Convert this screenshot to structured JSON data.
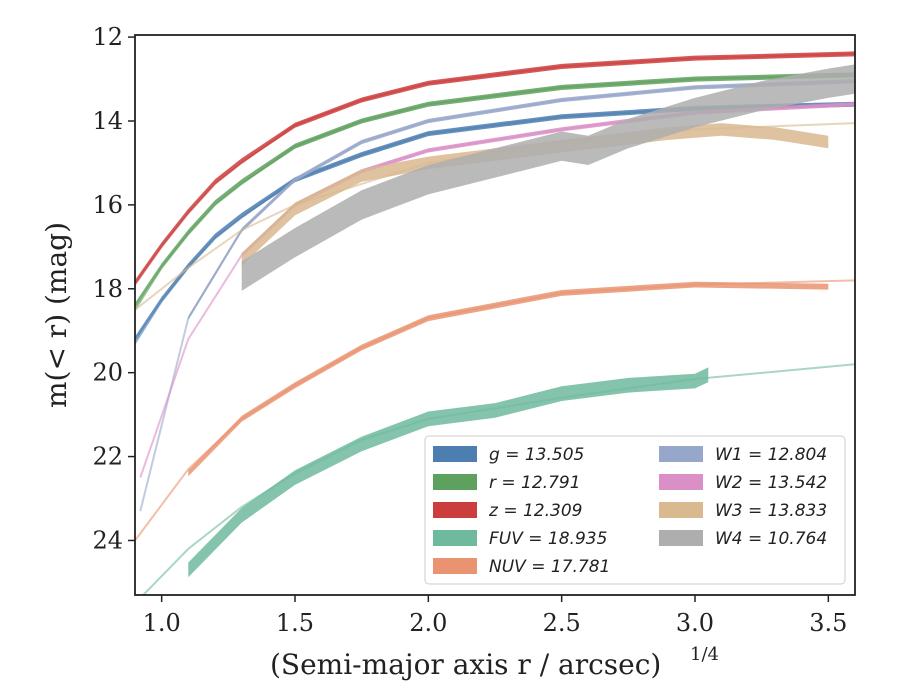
{
  "chart_data": {
    "type": "line",
    "xlabel": "(Semi-major axis r / arcsec)",
    "xlabel_exponent": "1/4",
    "ylabel": "m(< r) (mag)",
    "xlim": [
      0.9,
      3.6
    ],
    "ylim": [
      25.3,
      11.95
    ],
    "y_inverted": true,
    "grid": false,
    "legend_placement": "lower-right",
    "x_ticks": [
      "1.0",
      "1.5",
      "2.0",
      "2.5",
      "3.0",
      "3.5"
    ],
    "y_ticks": [
      "12",
      "14",
      "16",
      "18",
      "20",
      "22",
      "24"
    ],
    "legend": [
      {
        "key": "g",
        "label": "g = 13.505",
        "color": "#4c7eb0"
      },
      {
        "key": "r",
        "label": "r = 12.791",
        "color": "#5ea05e"
      },
      {
        "key": "z",
        "label": "z = 12.309",
        "color": "#cc3d3d"
      },
      {
        "key": "FUV",
        "label": "FUV = 18.935",
        "color": "#6fba9e"
      },
      {
        "key": "NUV",
        "label": "NUV = 17.781",
        "color": "#ea9370"
      },
      {
        "key": "W1",
        "label": "W1 = 12.804",
        "color": "#97a7c9"
      },
      {
        "key": "W2",
        "label": "W2 = 13.542",
        "color": "#da8fc6"
      },
      {
        "key": "W3",
        "label": "W3 = 13.833",
        "color": "#d9b98f"
      },
      {
        "key": "W4",
        "label": "W4 = 10.764",
        "color": "#aeaeae"
      }
    ],
    "series": [
      {
        "name": "z",
        "color": "#cc3d3d",
        "model": {
          "x": [
            0.9,
            1.0,
            1.1,
            1.2,
            1.3,
            1.5,
            1.75,
            2.0,
            2.5,
            3.0,
            3.6
          ],
          "y": [
            17.9,
            17.0,
            16.2,
            15.5,
            15.0,
            14.1,
            13.5,
            13.1,
            12.7,
            12.5,
            12.4
          ]
        },
        "data": {
          "x": [
            0.9,
            1.0,
            1.1,
            1.2,
            1.3,
            1.5,
            1.75,
            2.0,
            2.5,
            3.0,
            3.6
          ],
          "y": [
            17.85,
            16.95,
            16.15,
            15.45,
            14.95,
            14.1,
            13.5,
            13.1,
            12.7,
            12.5,
            12.4
          ],
          "width": 0.12
        }
      },
      {
        "name": "r",
        "color": "#5ea05e",
        "model": {
          "x": [
            0.9,
            1.0,
            1.1,
            1.2,
            1.3,
            1.5,
            1.75,
            2.0,
            2.5,
            3.0,
            3.6
          ],
          "y": [
            18.5,
            17.5,
            16.7,
            16.0,
            15.5,
            14.6,
            14.0,
            13.6,
            13.2,
            13.0,
            12.9
          ]
        },
        "data": {
          "x": [
            0.9,
            1.0,
            1.1,
            1.2,
            1.3,
            1.5,
            1.75,
            2.0,
            2.5,
            3.0,
            3.6
          ],
          "y": [
            18.4,
            17.45,
            16.65,
            15.95,
            15.45,
            14.6,
            14.0,
            13.6,
            13.2,
            13.0,
            12.9
          ],
          "width": 0.12
        }
      },
      {
        "name": "g",
        "color": "#4c7eb0",
        "model": {
          "x": [
            0.9,
            1.0,
            1.1,
            1.2,
            1.3,
            1.5,
            1.75,
            2.0,
            2.5,
            3.0,
            3.6
          ],
          "y": [
            19.3,
            18.3,
            17.5,
            16.8,
            16.3,
            15.4,
            14.8,
            14.3,
            13.9,
            13.7,
            13.6
          ]
        },
        "data": {
          "x": [
            0.9,
            1.0,
            1.1,
            1.2,
            1.3,
            1.5,
            1.75,
            2.0,
            2.5,
            3.0,
            3.6
          ],
          "y": [
            19.2,
            18.25,
            17.45,
            16.75,
            16.25,
            15.4,
            14.8,
            14.3,
            13.9,
            13.7,
            13.6
          ],
          "width": 0.12
        }
      },
      {
        "name": "W1",
        "color": "#97a7c9",
        "model": {
          "x": [
            0.92,
            1.1,
            1.3,
            1.5,
            1.75,
            2.0,
            2.5,
            3.0,
            3.6
          ],
          "y": [
            23.3,
            18.7,
            16.6,
            15.4,
            14.5,
            14.0,
            13.5,
            13.2,
            13.05
          ]
        },
        "data": {
          "x": [
            1.1,
            1.3,
            1.5,
            1.75,
            2.0,
            2.5,
            3.0,
            3.6
          ],
          "y": [
            18.7,
            16.6,
            15.4,
            14.5,
            14.0,
            13.5,
            13.2,
            13.05
          ],
          "width": 0.1
        }
      },
      {
        "name": "W2",
        "color": "#da8fc6",
        "model": {
          "x": [
            0.92,
            1.1,
            1.3,
            1.5,
            1.75,
            2.0,
            2.5,
            3.0,
            3.6
          ],
          "y": [
            22.5,
            19.2,
            17.2,
            16.0,
            15.2,
            14.7,
            14.2,
            13.8,
            13.6
          ]
        },
        "data": {
          "x": [
            1.3,
            1.5,
            1.75,
            2.0,
            2.5,
            3.0,
            3.6
          ],
          "y": [
            17.2,
            16.0,
            15.2,
            14.7,
            14.2,
            13.8,
            13.6
          ],
          "width": 0.1
        }
      },
      {
        "name": "W3",
        "color": "#d9b98f",
        "model": {
          "x": [
            0.9,
            1.0,
            1.1,
            1.3,
            1.5,
            1.75,
            2.0,
            2.5,
            3.0,
            3.6
          ],
          "y": [
            18.5,
            18.0,
            17.5,
            16.6,
            16.0,
            15.5,
            15.0,
            14.5,
            14.2,
            14.05
          ]
        },
        "data": {
          "x": [
            1.3,
            1.5,
            1.75,
            2.0,
            2.5,
            2.9,
            3.1,
            3.3,
            3.5
          ],
          "y": [
            17.3,
            16.1,
            15.3,
            15.0,
            14.6,
            14.3,
            14.2,
            14.3,
            14.5
          ],
          "width": 0.3
        }
      },
      {
        "name": "W4",
        "color": "#aeaeae",
        "data": {
          "x": [
            1.3,
            1.5,
            1.75,
            2.0,
            2.25,
            2.5,
            2.6,
            2.75,
            3.0,
            3.25,
            3.5,
            3.6
          ],
          "y": [
            17.7,
            16.9,
            16.0,
            15.4,
            15.0,
            14.6,
            14.7,
            14.3,
            13.8,
            13.4,
            13.1,
            13.0
          ],
          "width": 0.7
        }
      },
      {
        "name": "NUV",
        "color": "#ea9370",
        "model": {
          "x": [
            0.9,
            1.1,
            1.3,
            1.5,
            1.75,
            2.0,
            2.5,
            3.0,
            3.6
          ],
          "y": [
            24.0,
            22.3,
            21.1,
            20.3,
            19.4,
            18.7,
            18.1,
            17.9,
            17.8
          ]
        },
        "data": {
          "x": [
            1.1,
            1.3,
            1.5,
            1.75,
            2.0,
            2.5,
            3.0,
            3.5
          ],
          "y": [
            22.4,
            21.1,
            20.3,
            19.4,
            18.7,
            18.1,
            17.9,
            17.95
          ],
          "width": 0.14
        }
      },
      {
        "name": "FUV",
        "color": "#6fba9e",
        "model": {
          "x": [
            0.9,
            1.1,
            1.3,
            1.5,
            1.75,
            2.0,
            2.5,
            3.0,
            3.6
          ],
          "y": [
            25.5,
            24.2,
            23.2,
            22.4,
            21.6,
            21.1,
            20.6,
            20.15,
            19.8
          ]
        },
        "data": {
          "x": [
            1.1,
            1.3,
            1.5,
            1.75,
            2.0,
            2.25,
            2.5,
            2.75,
            3.0,
            3.05
          ],
          "y": [
            24.7,
            23.4,
            22.5,
            21.7,
            21.1,
            20.9,
            20.5,
            20.3,
            20.2,
            20.05
          ],
          "width": 0.35
        }
      }
    ]
  }
}
